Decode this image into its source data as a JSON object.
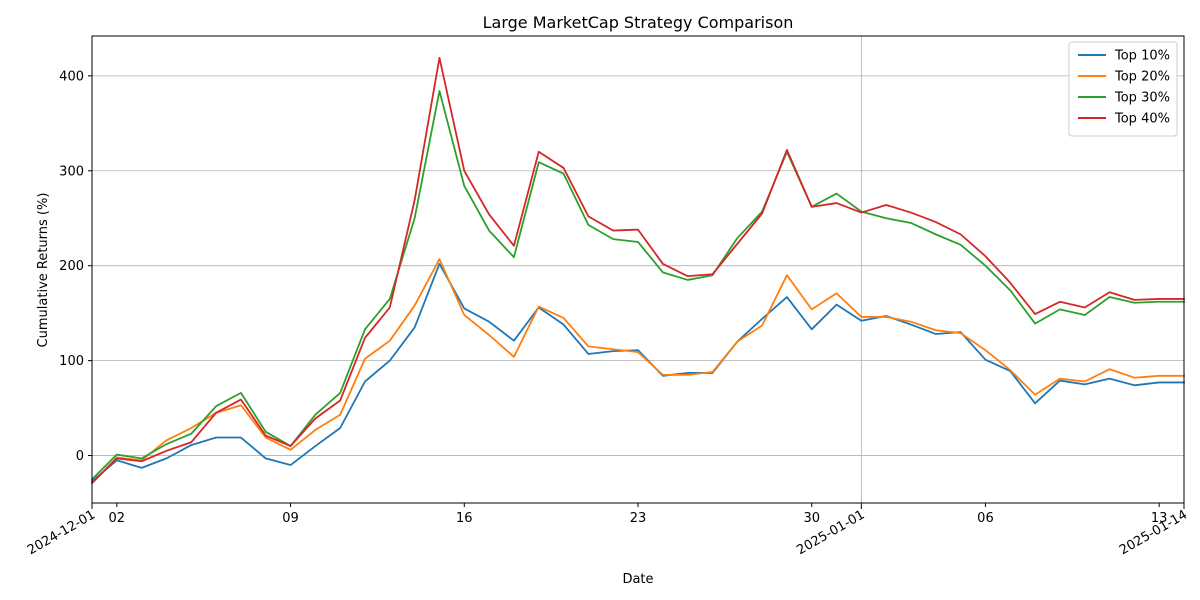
{
  "chart_data": {
    "type": "line",
    "title": "Large MarketCap Strategy Comparison",
    "xlabel": "Date",
    "ylabel": "Cumulative Returns (%)",
    "x_start": "2024-12-01",
    "x_end": "2025-01-14",
    "xlim": [
      "2024-12-01",
      "2025-01-14"
    ],
    "ylim": [
      -50,
      442
    ],
    "y_ticks": [
      0,
      100,
      200,
      300,
      400
    ],
    "x_ticks": [
      {
        "date": "2024-12-01",
        "label": "2024-12-01",
        "rotated": true
      },
      {
        "date": "2024-12-02",
        "label": "02",
        "rotated": false
      },
      {
        "date": "2024-12-09",
        "label": "09",
        "rotated": false
      },
      {
        "date": "2024-12-16",
        "label": "16",
        "rotated": false
      },
      {
        "date": "2024-12-23",
        "label": "23",
        "rotated": false
      },
      {
        "date": "2024-12-30",
        "label": "30",
        "rotated": false
      },
      {
        "date": "2025-01-01",
        "label": "2025-01-01",
        "rotated": true
      },
      {
        "date": "2025-01-06",
        "label": "06",
        "rotated": false
      },
      {
        "date": "2025-01-13",
        "label": "13",
        "rotated": false
      },
      {
        "date": "2025-01-14",
        "label": "2025-01-14",
        "rotated": true
      }
    ],
    "grid": true,
    "legend": "top-right",
    "x": [
      "2024-12-01",
      "2024-12-02",
      "2024-12-03",
      "2024-12-04",
      "2024-12-05",
      "2024-12-06",
      "2024-12-07",
      "2024-12-08",
      "2024-12-09",
      "2024-12-10",
      "2024-12-11",
      "2024-12-12",
      "2024-12-13",
      "2024-12-14",
      "2024-12-15",
      "2024-12-16",
      "2024-12-17",
      "2024-12-18",
      "2024-12-19",
      "2024-12-20",
      "2024-12-21",
      "2024-12-22",
      "2024-12-23",
      "2024-12-24",
      "2024-12-25",
      "2024-12-26",
      "2024-12-27",
      "2024-12-28",
      "2024-12-29",
      "2024-12-30",
      "2024-12-31",
      "2025-01-01",
      "2025-01-02",
      "2025-01-03",
      "2025-01-04",
      "2025-01-05",
      "2025-01-06",
      "2025-01-07",
      "2025-01-08",
      "2025-01-09",
      "2025-01-10",
      "2025-01-11",
      "2025-01-12",
      "2025-01-13",
      "2025-01-14"
    ],
    "series": [
      {
        "name": "Top 10%",
        "color": "#1f77b4",
        "values": [
          -27,
          -5,
          -13,
          -3,
          11,
          19,
          19,
          -3,
          -10,
          10,
          29,
          78,
          100,
          135,
          202,
          155,
          141,
          121,
          156,
          138,
          107,
          110,
          111,
          84,
          87,
          87,
          120,
          144,
          167,
          133,
          159,
          142,
          147,
          138,
          128,
          130,
          101,
          89,
          55,
          79,
          75,
          81,
          74,
          77,
          77
        ]
      },
      {
        "name": "Top 20%",
        "color": "#ff7f0e",
        "values": [
          -29,
          -2,
          -5,
          16,
          29,
          45,
          53,
          19,
          6,
          27,
          43,
          102,
          121,
          158,
          207,
          148,
          127,
          104,
          157,
          145,
          115,
          112,
          109,
          85,
          85,
          88,
          120,
          137,
          190,
          154,
          171,
          146,
          146,
          141,
          132,
          129,
          111,
          90,
          64,
          81,
          78,
          91,
          82,
          84,
          84
        ]
      },
      {
        "name": "Top 30%",
        "color": "#2ca02c",
        "values": [
          -25,
          1,
          -3,
          12,
          23,
          52,
          66,
          25,
          10,
          43,
          66,
          133,
          165,
          250,
          384,
          284,
          237,
          209,
          309,
          297,
          243,
          228,
          225,
          193,
          185,
          190,
          229,
          257,
          320,
          262,
          276,
          257,
          250,
          245,
          233,
          222,
          200,
          174,
          139,
          154,
          148,
          167,
          161,
          162,
          162
        ]
      },
      {
        "name": "Top 40%",
        "color": "#d62728",
        "values": [
          -29,
          -3,
          -6,
          5,
          14,
          45,
          59,
          21,
          10,
          39,
          58,
          124,
          156,
          269,
          419,
          300,
          254,
          221,
          320,
          303,
          252,
          237,
          238,
          202,
          189,
          191,
          223,
          255,
          322,
          262,
          266,
          256,
          264,
          256,
          246,
          233,
          210,
          182,
          149,
          162,
          156,
          172,
          164,
          165,
          165
        ]
      }
    ]
  }
}
